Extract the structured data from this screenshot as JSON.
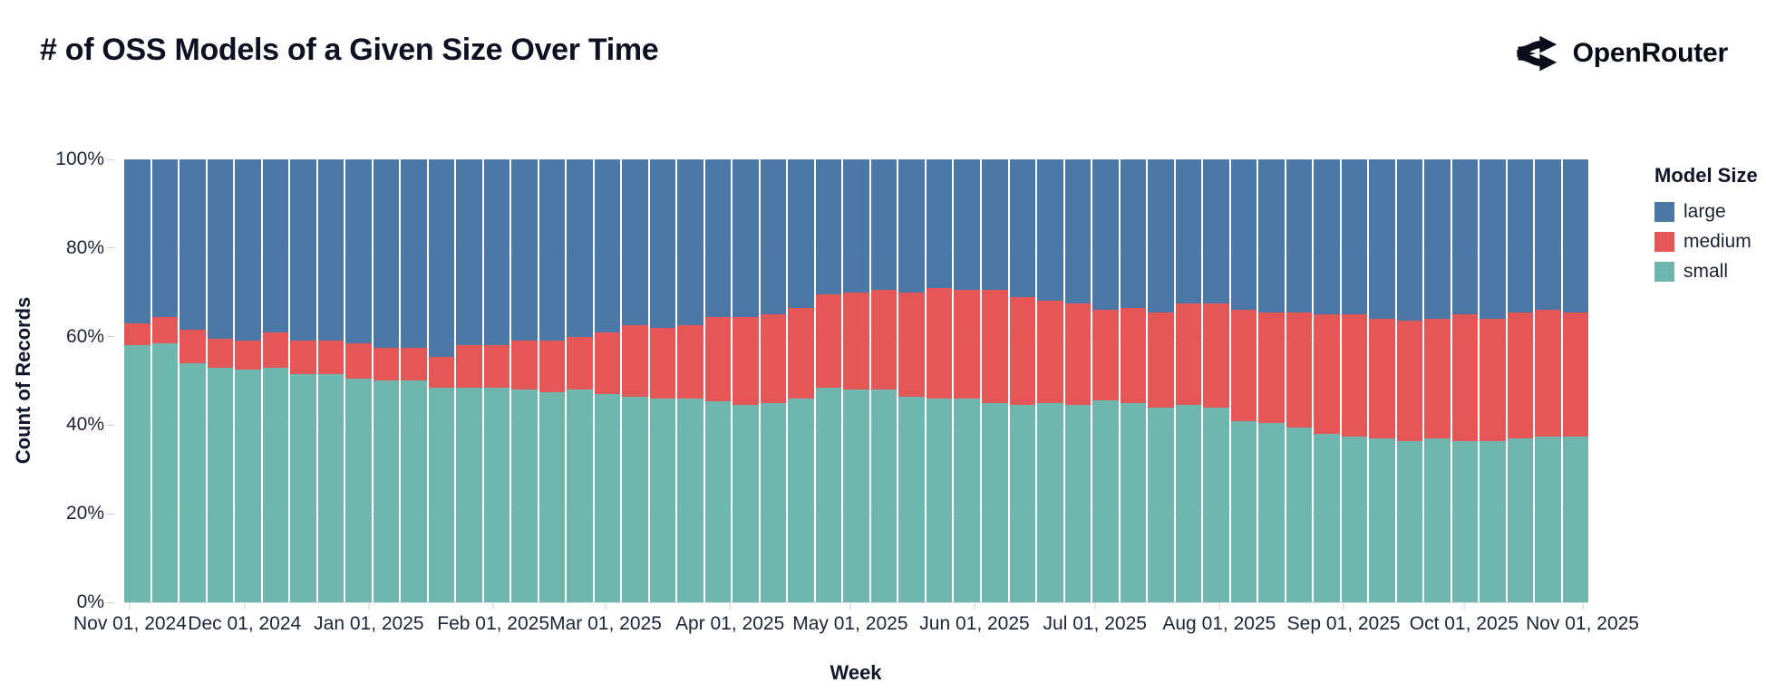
{
  "header": {
    "title": "# of OSS Models of a Given Size Over Time",
    "brand": "OpenRouter"
  },
  "chart_data": {
    "type": "bar",
    "stacked": true,
    "normalized": true,
    "title": "# of OSS Models of a Given Size Over Time",
    "xlabel": "Week",
    "ylabel": "Count of Records",
    "ylim": [
      0,
      100
    ],
    "grid": true,
    "legend_position": "right",
    "legend": {
      "title": "Model Size",
      "entries": [
        {
          "label": "large",
          "color": "#4c78a8"
        },
        {
          "label": "medium",
          "color": "#e45756"
        },
        {
          "label": "small",
          "color": "#6eb6ae"
        }
      ]
    },
    "y_ticks": [
      {
        "label": "0%",
        "value": 0
      },
      {
        "label": "20%",
        "value": 20
      },
      {
        "label": "40%",
        "value": 40
      },
      {
        "label": "60%",
        "value": 60
      },
      {
        "label": "80%",
        "value": 80
      },
      {
        "label": "100%",
        "value": 100
      }
    ],
    "x_ticks": [
      {
        "label": "Nov 01, 2024",
        "pos": 0.004
      },
      {
        "label": "Dec 01, 2024",
        "pos": 0.0822
      },
      {
        "label": "Jan 01, 2025",
        "pos": 0.1671
      },
      {
        "label": "Feb 01, 2025",
        "pos": 0.2521
      },
      {
        "label": "Mar 01, 2025",
        "pos": 0.3288
      },
      {
        "label": "Apr 01, 2025",
        "pos": 0.4137
      },
      {
        "label": "May 01, 2025",
        "pos": 0.4959
      },
      {
        "label": "Jun 01, 2025",
        "pos": 0.5808
      },
      {
        "label": "Jul 01, 2025",
        "pos": 0.663
      },
      {
        "label": "Aug 01, 2025",
        "pos": 0.7479
      },
      {
        "label": "Sep 01, 2025",
        "pos": 0.8329
      },
      {
        "label": "Oct 01, 2025",
        "pos": 0.9151
      },
      {
        "label": "Nov 01, 2025",
        "pos": 0.996
      }
    ],
    "weeks": [
      "2024-10-27",
      "2024-11-03",
      "2024-11-10",
      "2024-11-17",
      "2024-11-24",
      "2024-12-01",
      "2024-12-08",
      "2024-12-15",
      "2024-12-22",
      "2024-12-29",
      "2025-01-05",
      "2025-01-12",
      "2025-01-19",
      "2025-01-26",
      "2025-02-02",
      "2025-02-09",
      "2025-02-16",
      "2025-02-23",
      "2025-03-02",
      "2025-03-09",
      "2025-03-16",
      "2025-03-23",
      "2025-03-30",
      "2025-04-06",
      "2025-04-13",
      "2025-04-20",
      "2025-04-27",
      "2025-05-04",
      "2025-05-11",
      "2025-05-18",
      "2025-05-25",
      "2025-06-01",
      "2025-06-08",
      "2025-06-15",
      "2025-06-22",
      "2025-06-29",
      "2025-07-06",
      "2025-07-13",
      "2025-07-20",
      "2025-07-27",
      "2025-08-03",
      "2025-08-10",
      "2025-08-17",
      "2025-08-24",
      "2025-08-31",
      "2025-09-07",
      "2025-09-14",
      "2025-09-21",
      "2025-09-28",
      "2025-10-05",
      "2025-10-12",
      "2025-10-19",
      "2025-10-26"
    ],
    "series": [
      {
        "name": "small",
        "color": "#6eb6ae",
        "values": [
          58,
          58.5,
          54,
          53,
          52.5,
          53,
          51.5,
          51.5,
          50.5,
          50,
          50,
          48.5,
          48.5,
          48.5,
          48,
          47.5,
          48,
          47,
          46.5,
          46,
          46,
          45.5,
          44.5,
          45,
          46,
          48.5,
          48,
          48,
          46.5,
          46,
          46,
          45,
          44.5,
          45,
          44.5,
          45.5,
          45,
          44,
          44.5,
          44,
          41,
          40.5,
          39.5,
          38,
          37.5,
          37,
          36.5,
          37,
          36.5,
          36.5,
          37,
          37.5,
          37.5
        ]
      },
      {
        "name": "medium",
        "color": "#e45756",
        "values": [
          5,
          6,
          7.5,
          6.5,
          6.5,
          8,
          7.5,
          7.5,
          8,
          7.5,
          7.5,
          7,
          9.5,
          9.5,
          11,
          11.5,
          12,
          14,
          16,
          16,
          16.5,
          19,
          20,
          20,
          20.5,
          21,
          22,
          22.5,
          23.5,
          25,
          24.5,
          25.5,
          24.5,
          23,
          23,
          20.5,
          21.5,
          21.5,
          23,
          23.5,
          25,
          25,
          26,
          27,
          27.5,
          27,
          27,
          27,
          28.5,
          27.5,
          28.5,
          28.5,
          28
        ]
      },
      {
        "name": "large",
        "color": "#4c78a8",
        "values": [
          37,
          35.5,
          38.5,
          40.5,
          41,
          39,
          41,
          41,
          41.5,
          42.5,
          42.5,
          44.5,
          42,
          42,
          41,
          41,
          40,
          39,
          37.5,
          38,
          37.5,
          35.5,
          35.5,
          35,
          33.5,
          30.5,
          30,
          29.5,
          30,
          29,
          29.5,
          29.5,
          31,
          32,
          32.5,
          34,
          33.5,
          34.5,
          32.5,
          32.5,
          34,
          34.5,
          34.5,
          35,
          35,
          36,
          36.5,
          36,
          35,
          36,
          34.5,
          34,
          34.5
        ]
      }
    ]
  }
}
